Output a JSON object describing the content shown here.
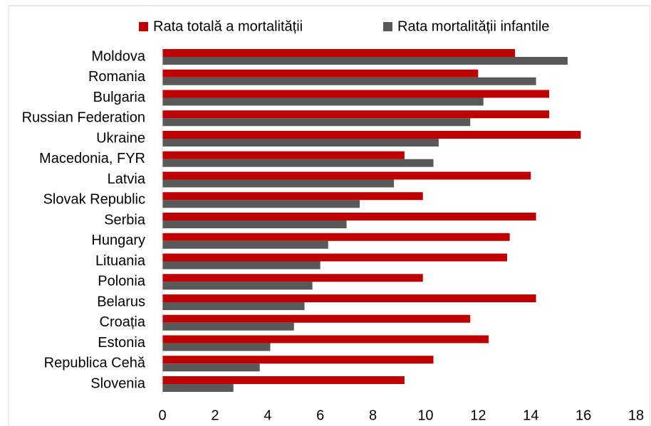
{
  "chart_data": {
    "type": "bar",
    "orientation": "horizontal",
    "categories": [
      "Moldova",
      "Romania",
      "Bulgaria",
      "Russian Federation",
      "Ukraine",
      "Macedonia, FYR",
      "Latvia",
      "Slovak Republic",
      "Serbia",
      "Hungary",
      "Lituania",
      "Polonia",
      "Belarus",
      "Croația",
      "Estonia",
      "Republica Cehă",
      "Slovenia"
    ],
    "series": [
      {
        "name": "Rata totală a mortalității",
        "color": "#c00000",
        "values": [
          13.4,
          12.0,
          14.7,
          14.7,
          15.9,
          9.2,
          14.0,
          9.9,
          14.2,
          13.2,
          13.1,
          9.9,
          14.2,
          11.7,
          12.4,
          10.3,
          9.2
        ]
      },
      {
        "name": "Rata mortalității infantile",
        "color": "#595959",
        "values": [
          15.4,
          14.2,
          12.2,
          11.7,
          10.5,
          10.3,
          8.8,
          7.5,
          7.0,
          6.3,
          6.0,
          5.7,
          5.4,
          5.0,
          4.1,
          3.7,
          2.7
        ]
      }
    ],
    "xlim": [
      0,
      18
    ],
    "xticks": [
      0,
      2,
      4,
      6,
      8,
      10,
      12,
      14,
      16,
      18
    ],
    "grid": false,
    "legend": "top"
  }
}
